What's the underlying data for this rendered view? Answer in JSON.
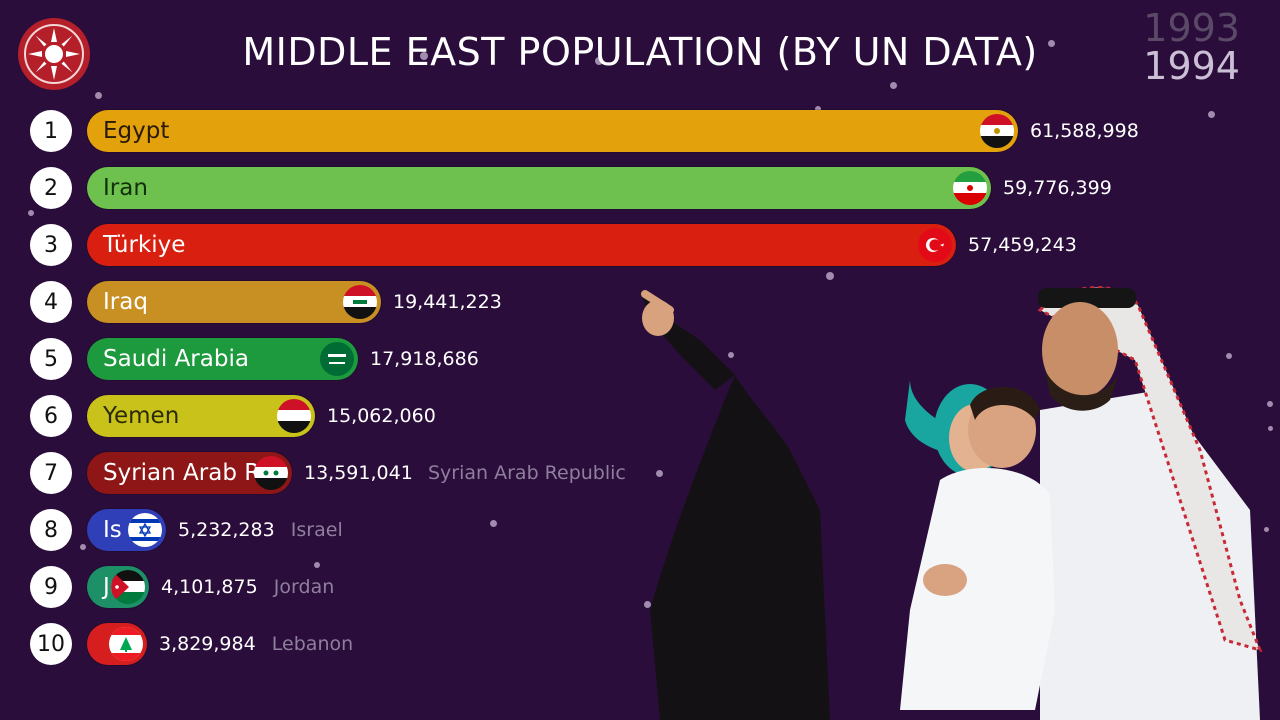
{
  "header": {
    "title": "MIDDLE EAST POPULATION (BY UN DATA)",
    "year_previous": "1993",
    "year_current": "1994"
  },
  "chart_data": {
    "type": "bar",
    "orientation": "horizontal",
    "title": "MIDDLE EAST POPULATION (BY UN DATA)",
    "period": "1994",
    "categories": [
      "Egypt",
      "Iran",
      "Türkiye",
      "Iraq",
      "Saudi Arabia",
      "Yemen",
      "Syrian Arab Republic",
      "Israel",
      "Jordan",
      "Lebanon"
    ],
    "bar_name_shown": [
      "Egypt",
      "Iran",
      "Türkiye",
      "Iraq",
      "Saudi Arabia",
      "Yemen",
      "Syrian Arab R",
      "Is",
      "J",
      ""
    ],
    "outside_label": [
      "",
      "",
      "",
      "",
      "",
      "",
      "Syrian Arab Republic",
      "Israel",
      "Jordan",
      "Lebanon"
    ],
    "values": [
      61588998,
      59776399,
      57459243,
      19441223,
      17918686,
      15062060,
      13591041,
      5232283,
      4101875,
      3829984
    ],
    "value_labels": [
      "61,588,998",
      "59,776,399",
      "57,459,243",
      "19,441,223",
      "17,918,686",
      "15,062,060",
      "13,591,041",
      "5,232,283",
      "4,101,875",
      "3,829,984"
    ],
    "ranks": [
      "1",
      "2",
      "3",
      "4",
      "5",
      "6",
      "7",
      "8",
      "9",
      "10"
    ],
    "colors": [
      "#e3a20b",
      "#6fc14f",
      "#d91f0f",
      "#c88f23",
      "#1e9a3e",
      "#c9c21a",
      "#8e1616",
      "#2f3fb8",
      "#1e9068",
      "#d61e1e"
    ],
    "text_colors": [
      "#2a1a08",
      "#12300a",
      "#ffffff",
      "#ffffff",
      "#ffffff",
      "#2a2a08",
      "#ffffff",
      "#ffffff",
      "#ffffff",
      "#ffffff"
    ],
    "flags": [
      "egypt-flag",
      "iran-flag",
      "turkey-flag",
      "iraq-flag",
      "saudi-flag",
      "yemen-flag",
      "syria-flag",
      "israel-flag",
      "jordan-flag",
      "lebanon-flag"
    ],
    "xlim": [
      0,
      61588998
    ]
  },
  "decor": {
    "logo": "sun-logo-icon",
    "photo": "family-photo"
  }
}
